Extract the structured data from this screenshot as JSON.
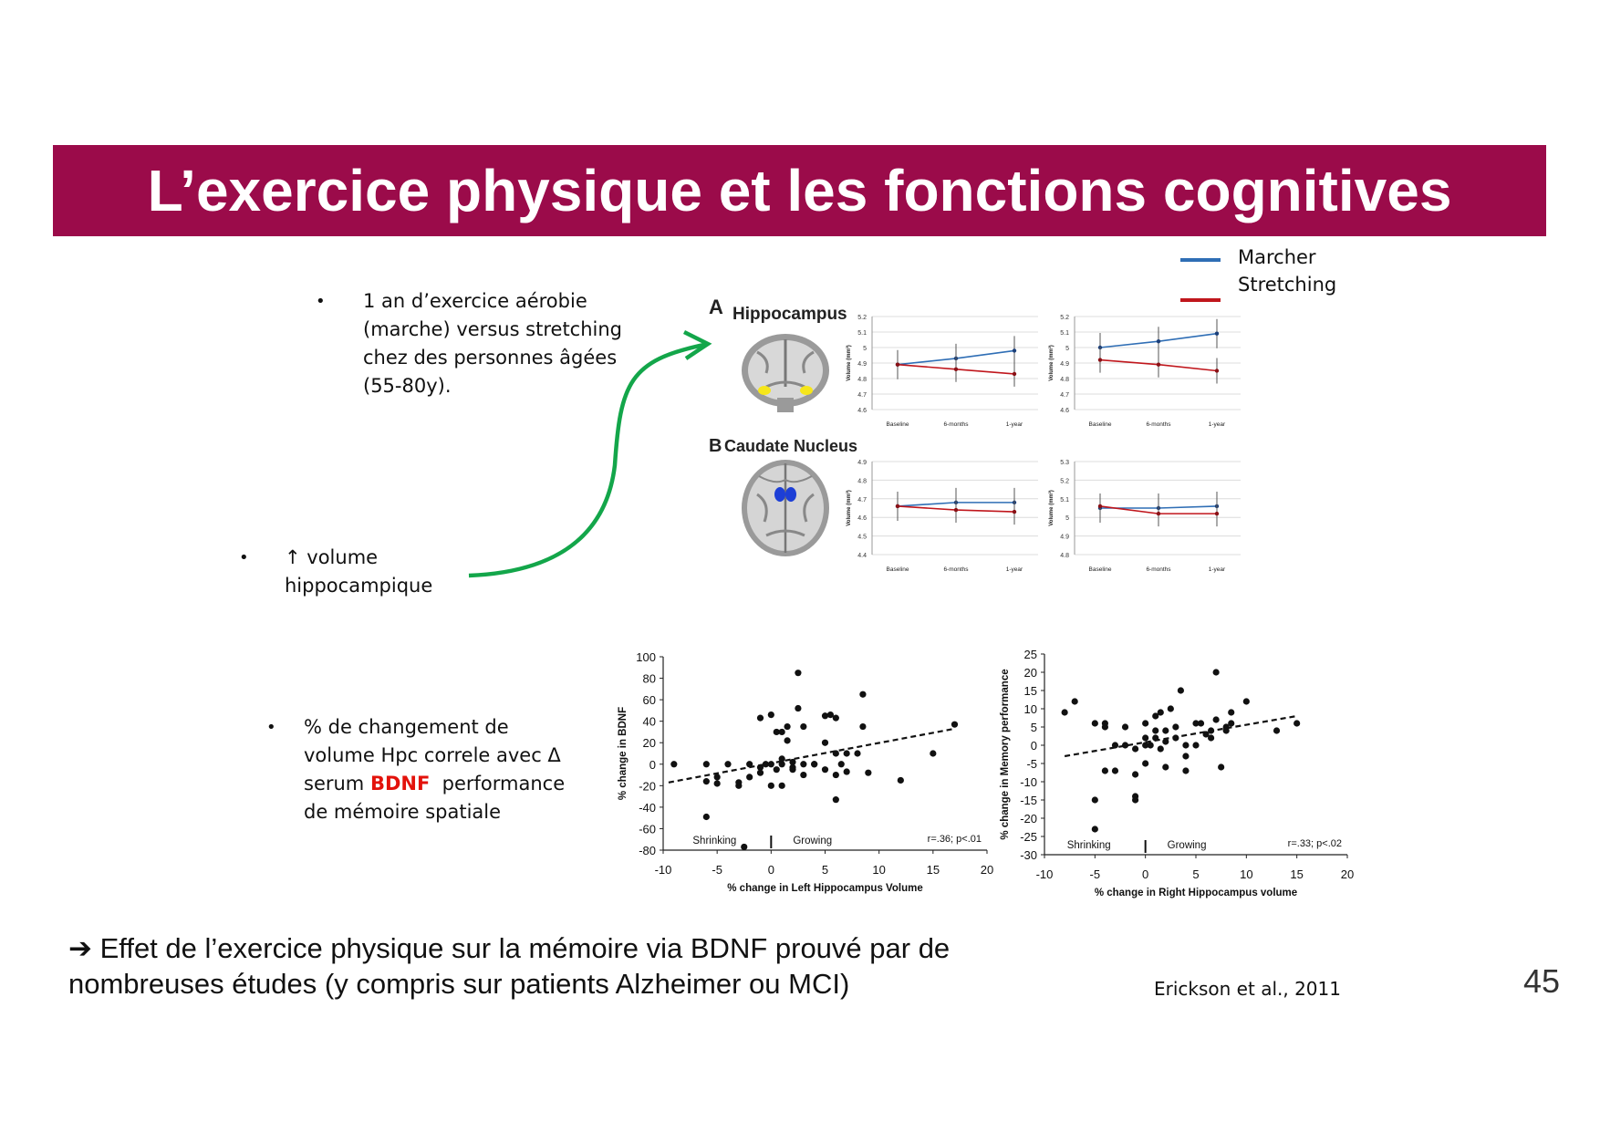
{
  "slide": {
    "title": "L’exercice physique et les fonctions cognitives",
    "page_number": "45",
    "citation": "Erickson et al., 2011"
  },
  "legend": {
    "items": [
      {
        "label": "Marcher",
        "color": "#2f6eb5"
      },
      {
        "label": "Stretching",
        "color": "#c0161c"
      }
    ]
  },
  "bullets": {
    "b1": {
      "lines": [
        "1 an d’exercice aérobie",
        "(marche) versus stretching",
        "chez des personnes âgées",
        "(55-80y)."
      ]
    },
    "b2": {
      "lines": [
        "↑  volume",
        "hippocampique"
      ]
    },
    "b3": {
      "line1": "% de changement de",
      "line2": "volume Hpc correle avec Δ",
      "line3_pre": "serum ",
      "line3_red": "BDNF",
      "line3_post": "  performance",
      "line4": "de mémoire spatiale"
    }
  },
  "conclusion": {
    "arrow": "➔",
    "line1": " Effet de l’exercice physique sur la mémoire via BDNF prouvé par de",
    "line2": "nombreuses études (y compris sur patients Alzheimer ou MCI)"
  },
  "figure_panels": {
    "a": {
      "letter": "A",
      "label": "Hippocampus"
    },
    "b": {
      "letter": "B",
      "label": "Caudate Nucleus"
    }
  },
  "chart_data": [
    {
      "id": "hipp-left",
      "type": "line",
      "ylabel": "Volume (mm³)",
      "categories": [
        "Baseline",
        "6-months",
        "1-year"
      ],
      "yticks": [
        "5.2",
        "5.1",
        "5",
        "4.9",
        "4.8",
        "4.7",
        "4.6"
      ],
      "ylim": [
        4.6,
        5.2
      ],
      "series": [
        {
          "name": "Marcher",
          "values": [
            4.89,
            4.93,
            4.98
          ]
        },
        {
          "name": "Stretching",
          "values": [
            4.89,
            4.86,
            4.83
          ]
        }
      ]
    },
    {
      "id": "hipp-right",
      "type": "line",
      "ylabel": "Volume (mm³)",
      "categories": [
        "Baseline",
        "6-months",
        "1-year"
      ],
      "yticks": [
        "5.2",
        "5.1",
        "5",
        "4.9",
        "4.8",
        "4.7",
        "4.6"
      ],
      "ylim": [
        4.6,
        5.2
      ],
      "series": [
        {
          "name": "Marcher",
          "values": [
            5.0,
            5.04,
            5.09
          ]
        },
        {
          "name": "Stretching",
          "values": [
            4.92,
            4.89,
            4.85
          ]
        }
      ]
    },
    {
      "id": "caud-left",
      "type": "line",
      "ylabel": "Volume (mm³)",
      "categories": [
        "Baseline",
        "6-months",
        "1-year"
      ],
      "yticks": [
        "4.9",
        "4.8",
        "4.7",
        "4.6",
        "4.5",
        "4.4"
      ],
      "ylim": [
        4.4,
        4.9
      ],
      "series": [
        {
          "name": "Marcher",
          "values": [
            4.66,
            4.68,
            4.68
          ]
        },
        {
          "name": "Stretching",
          "values": [
            4.66,
            4.64,
            4.63
          ]
        }
      ]
    },
    {
      "id": "caud-right",
      "type": "line",
      "ylabel": "Volume (mm³)",
      "categories": [
        "Baseline",
        "6-months",
        "1-year"
      ],
      "yticks": [
        "5.3",
        "5.2",
        "5.1",
        "5",
        "4.9",
        "4.8"
      ],
      "ylim": [
        4.8,
        5.3
      ],
      "series": [
        {
          "name": "Marcher",
          "values": [
            5.05,
            5.05,
            5.06
          ]
        },
        {
          "name": "Stretching",
          "values": [
            5.06,
            5.02,
            5.02
          ]
        }
      ]
    },
    {
      "id": "scatter-bdnf",
      "type": "scatter",
      "xlabel": "% change in Left Hippocampus Volume",
      "ylabel": "% change in BDNF",
      "xlim": [
        -10,
        20
      ],
      "ylim": [
        -80,
        100
      ],
      "xticks": [
        "-10",
        "-5",
        "0",
        "5",
        "10",
        "15",
        "20"
      ],
      "yticks": [
        "100",
        "80",
        "60",
        "40",
        "20",
        "0",
        "-20",
        "-40",
        "-60",
        "-80"
      ],
      "annotations": {
        "left": "Shrinking",
        "right": "Growing",
        "stat": "r=.36; p<.01"
      },
      "trend": [
        [
          -9.5,
          -17
        ],
        [
          17,
          33
        ]
      ],
      "points": [
        [
          -9,
          0
        ],
        [
          -6,
          -16
        ],
        [
          -5,
          -18
        ],
        [
          -6,
          0
        ],
        [
          -4,
          0
        ],
        [
          -5,
          -12
        ],
        [
          -3,
          -20
        ],
        [
          -3,
          -17
        ],
        [
          -2,
          -12
        ],
        [
          -2,
          0
        ],
        [
          -1,
          -8
        ],
        [
          -0.5,
          0
        ],
        [
          0,
          0
        ],
        [
          -1,
          43
        ],
        [
          0,
          46
        ],
        [
          0.5,
          30
        ],
        [
          1,
          30
        ],
        [
          1.5,
          22
        ],
        [
          1.5,
          35
        ],
        [
          2.5,
          52
        ],
        [
          2.5,
          85
        ],
        [
          3,
          35
        ],
        [
          5,
          45
        ],
        [
          5.5,
          46
        ],
        [
          6,
          43
        ],
        [
          5,
          20
        ],
        [
          4,
          0
        ],
        [
          3,
          -10
        ],
        [
          2,
          -5
        ],
        [
          1,
          0
        ],
        [
          1,
          -20
        ],
        [
          2,
          -3
        ],
        [
          3,
          0
        ],
        [
          4,
          0
        ],
        [
          6,
          -10
        ],
        [
          7,
          -7
        ],
        [
          5,
          -5
        ],
        [
          6,
          10
        ],
        [
          6.5,
          0
        ],
        [
          7,
          10
        ],
        [
          8,
          10
        ],
        [
          8.5,
          65
        ],
        [
          8.5,
          35
        ],
        [
          9,
          -8
        ],
        [
          12,
          -15
        ],
        [
          15,
          10
        ],
        [
          17,
          37
        ],
        [
          6,
          -33
        ],
        [
          -6,
          -49
        ],
        [
          -2.5,
          -77
        ],
        [
          0,
          -20
        ],
        [
          1,
          5
        ],
        [
          2,
          2
        ],
        [
          -1,
          -3
        ],
        [
          0.5,
          -5
        ]
      ]
    },
    {
      "id": "scatter-memory",
      "type": "scatter",
      "xlabel": "% change in Right Hippocampus volume",
      "ylabel": "% change in Memory performance",
      "xlim": [
        -10,
        20
      ],
      "ylim": [
        -30,
        25
      ],
      "xticks": [
        "-10",
        "-5",
        "0",
        "5",
        "10",
        "15",
        "20"
      ],
      "yticks": [
        "25",
        "20",
        "15",
        "10",
        "5",
        "0",
        "-5",
        "-10",
        "-15",
        "-20",
        "-25",
        "-30"
      ],
      "annotations": {
        "left": "Shrinking",
        "right": "Growing",
        "stat": "r=.33; p<.02"
      },
      "trend": [
        [
          -8,
          -3
        ],
        [
          15,
          8
        ]
      ],
      "points": [
        [
          -8,
          9
        ],
        [
          -7,
          12
        ],
        [
          -5,
          6
        ],
        [
          -4,
          6
        ],
        [
          -4,
          5
        ],
        [
          -4,
          -7
        ],
        [
          -3,
          -7
        ],
        [
          -3,
          0
        ],
        [
          -2,
          0
        ],
        [
          -2,
          5
        ],
        [
          -1,
          -1
        ],
        [
          -1,
          -8
        ],
        [
          -1,
          -14
        ],
        [
          0,
          0
        ],
        [
          0,
          2
        ],
        [
          0,
          -5
        ],
        [
          0,
          6
        ],
        [
          1,
          2
        ],
        [
          1,
          4
        ],
        [
          1,
          8
        ],
        [
          1.5,
          9
        ],
        [
          2,
          4
        ],
        [
          2,
          1
        ],
        [
          2.5,
          10
        ],
        [
          3,
          2
        ],
        [
          3,
          5
        ],
        [
          3.5,
          15
        ],
        [
          4,
          0
        ],
        [
          4,
          -3
        ],
        [
          4,
          -7
        ],
        [
          5,
          0
        ],
        [
          5,
          6
        ],
        [
          5.5,
          6
        ],
        [
          6,
          3
        ],
        [
          6.5,
          4
        ],
        [
          6.5,
          2
        ],
        [
          7,
          20
        ],
        [
          7,
          7
        ],
        [
          7.5,
          -6
        ],
        [
          8,
          5
        ],
        [
          8,
          4
        ],
        [
          8.5,
          6
        ],
        [
          8.5,
          9
        ],
        [
          10,
          12
        ],
        [
          13,
          4
        ],
        [
          15,
          6
        ],
        [
          -5,
          -15
        ],
        [
          -5,
          -23
        ],
        [
          -1,
          -15
        ],
        [
          0.5,
          0
        ],
        [
          1.5,
          -1
        ],
        [
          2,
          -6
        ]
      ]
    }
  ]
}
